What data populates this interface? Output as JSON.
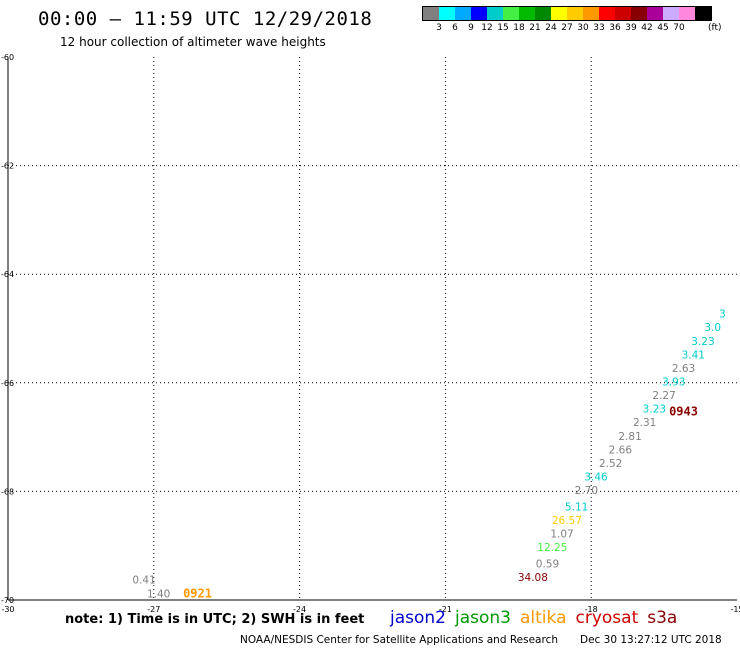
{
  "header": {
    "title": "00:00 – 11:59 UTC 12/29/2018",
    "subtitle": "12 hour collection of altimeter wave heights"
  },
  "colorbar": {
    "colors": [
      "#808080",
      "#00ffff",
      "#00aaff",
      "#0000ff",
      "#00cccc",
      "#44ee44",
      "#00bb00",
      "#008800",
      "#ffff00",
      "#ffcc00",
      "#ff9900",
      "#ff0000",
      "#cc0000",
      "#880000",
      "#aa0099",
      "#ccaaff",
      "#ff88dd",
      "#000000"
    ],
    "labels": [
      "3",
      "6",
      "9",
      "12",
      "15",
      "18",
      "21",
      "24",
      "27",
      "30",
      "33",
      "36",
      "39",
      "42",
      "45",
      "70"
    ],
    "unit": "(ft)"
  },
  "chart_data": {
    "type": "scatter",
    "title": "00:00 – 11:59 UTC 12/29/2018",
    "subtitle": "12 hour collection of altimeter wave heights",
    "xlabel": "",
    "ylabel": "",
    "xlim": [
      -30,
      -15
    ],
    "ylim": [
      -70,
      -60
    ],
    "x_ticks": [
      "-30",
      "-27",
      "-24",
      "-21",
      "-18",
      "-15"
    ],
    "y_ticks": [
      "-60",
      "-62",
      "-64",
      "-66",
      "-68",
      "-70"
    ],
    "grid": true,
    "series": [
      {
        "name": "jason3",
        "points": [
          {
            "lon": -27.2,
            "lat": -69.7,
            "label": "0.41",
            "color": "#808080"
          },
          {
            "lon": -26.9,
            "lat": -69.95,
            "label": "1.40",
            "color": "#808080"
          },
          {
            "lon": -19.2,
            "lat": -69.65,
            "label": "34.08",
            "color": "#880000"
          },
          {
            "lon": -18.9,
            "lat": -69.4,
            "label": "0.59",
            "color": "#808080"
          },
          {
            "lon": -18.8,
            "lat": -69.1,
            "label": "12.25",
            "color": "#44ee44"
          },
          {
            "lon": -18.6,
            "lat": -68.85,
            "label": "1.07",
            "color": "#808080"
          },
          {
            "lon": -18.5,
            "lat": -68.6,
            "label": "26.57",
            "color": "#ffcc00"
          },
          {
            "lon": -18.3,
            "lat": -68.35,
            "label": "5.11",
            "color": "#00cccc"
          },
          {
            "lon": -18.1,
            "lat": -68.05,
            "label": "2.70",
            "color": "#808080"
          },
          {
            "lon": -17.9,
            "lat": -67.8,
            "label": "3.46",
            "color": "#00cccc"
          },
          {
            "lon": -17.6,
            "lat": -67.55,
            "label": "2.52",
            "color": "#808080"
          },
          {
            "lon": -17.4,
            "lat": -67.3,
            "label": "2.66",
            "color": "#808080"
          },
          {
            "lon": -17.2,
            "lat": -67.05,
            "label": "2.81",
            "color": "#808080"
          },
          {
            "lon": -16.9,
            "lat": -66.8,
            "label": "2.31",
            "color": "#808080"
          },
          {
            "lon": -16.7,
            "lat": -66.55,
            "label": "3.23",
            "color": "#00cccc"
          },
          {
            "lon": -16.5,
            "lat": -66.3,
            "label": "2.27",
            "color": "#808080"
          },
          {
            "lon": -16.3,
            "lat": -66.05,
            "label": "3.93",
            "color": "#00cccc"
          },
          {
            "lon": -16.1,
            "lat": -65.8,
            "label": "2.63",
            "color": "#808080"
          },
          {
            "lon": -15.9,
            "lat": -65.55,
            "label": "3.41",
            "color": "#00cccc"
          },
          {
            "lon": -15.7,
            "lat": -65.3,
            "label": "3.23",
            "color": "#00cccc"
          },
          {
            "lon": -15.5,
            "lat": -65.05,
            "label": "3.0",
            "color": "#00cccc"
          },
          {
            "lon": -15.3,
            "lat": -64.8,
            "label": "3",
            "color": "#00cccc"
          }
        ]
      }
    ],
    "time_labels": [
      {
        "lon": -26.1,
        "lat": -69.95,
        "label": "0921",
        "color": "#ff9900"
      },
      {
        "lon": -16.1,
        "lat": -66.6,
        "label": "0943",
        "color": "#880000"
      }
    ]
  },
  "footer": {
    "note": "note: 1) Time is in UTC; 2) SWH is in feet",
    "satellites": [
      {
        "name": "jason2",
        "color": "#0000cc"
      },
      {
        "name": "jason3",
        "color": "#009900"
      },
      {
        "name": "altika",
        "color": "#ff9900"
      },
      {
        "name": "cryosat",
        "color": "#cc0000"
      },
      {
        "name": "s3a",
        "color": "#880000"
      }
    ],
    "credit": "NOAA/NESDIS Center for Satellite Applications and Research",
    "timestamp": "Dec 30 13:27:12 UTC 2018"
  }
}
